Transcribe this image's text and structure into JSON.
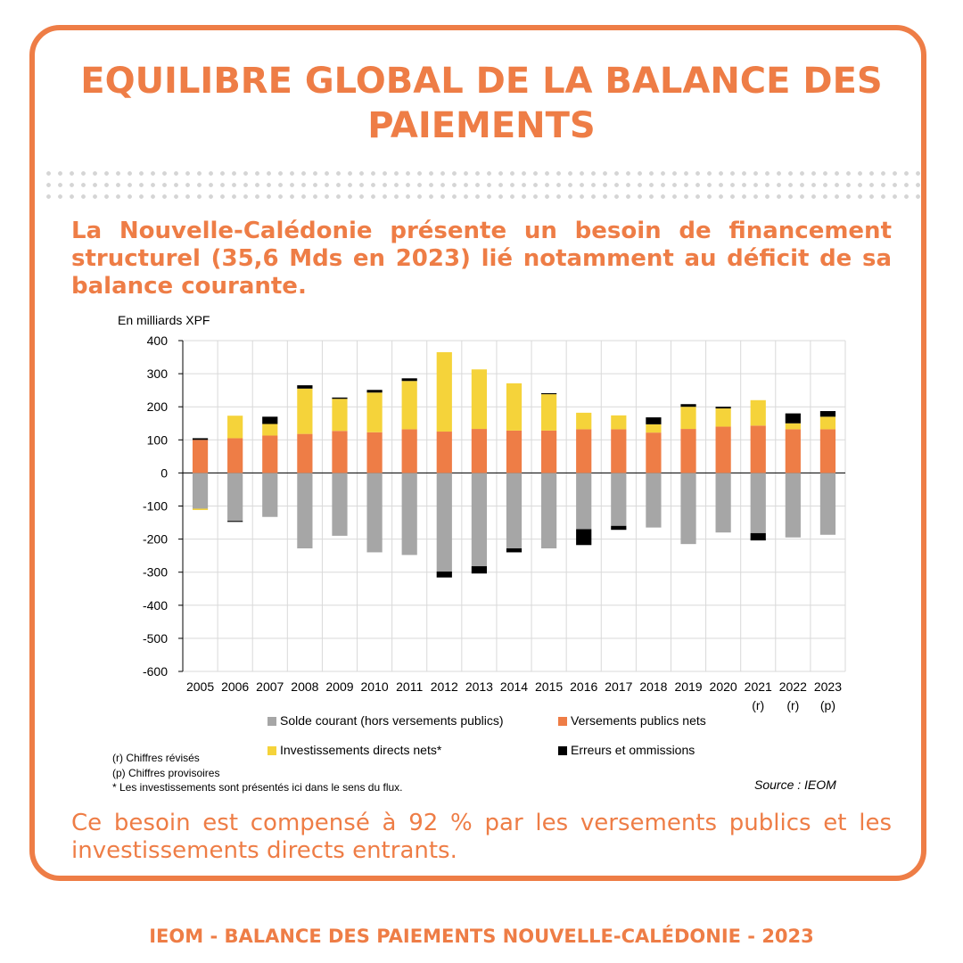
{
  "header": {
    "title": "EQUILIBRE GLOBAL DE LA BALANCE DES PAIEMENTS",
    "lead": "La Nouvelle-Calédonie présente un besoin de financement structurel (35,6 Mds en 2023) lié notamment au déficit de sa balance courante."
  },
  "chart_data": {
    "type": "bar",
    "stacked": true,
    "ylabel": "En milliards XPF",
    "ylim": [
      -600,
      400
    ],
    "yticks": [
      400,
      300,
      200,
      100,
      0,
      -100,
      -200,
      -300,
      -400,
      -500,
      -600
    ],
    "grid": true,
    "categories": [
      "2005",
      "2006",
      "2007",
      "2008",
      "2009",
      "2010",
      "2011",
      "2012",
      "2013",
      "2014",
      "2015",
      "2016",
      "2017",
      "2018",
      "2019",
      "2020",
      "2021",
      "2022",
      "2023"
    ],
    "category_notes": [
      "",
      "",
      "",
      "",
      "",
      "",
      "",
      "",
      "",
      "",
      "",
      "",
      "",
      "",
      "",
      "",
      "(r)",
      "(r)",
      "(p)"
    ],
    "series": [
      {
        "name": "Solde courant (hors versements publics)",
        "color": "#a6a6a6",
        "values": [
          -108,
          -145,
          -133,
          -228,
          -190,
          -240,
          -248,
          -298,
          -282,
          -228,
          -228,
          -170,
          -160,
          -165,
          -215,
          -180,
          -182,
          -195,
          -187
        ]
      },
      {
        "name": "Versements publics nets",
        "color": "#ee7d46",
        "values": [
          100,
          105,
          113,
          118,
          127,
          123,
          132,
          125,
          133,
          128,
          128,
          132,
          132,
          122,
          133,
          140,
          143,
          132,
          132
        ]
      },
      {
        "name": "Investissements directs nets*",
        "color": "#f5d33a",
        "values": [
          -4,
          68,
          35,
          137,
          97,
          120,
          146,
          240,
          180,
          143,
          110,
          50,
          42,
          25,
          67,
          55,
          77,
          18,
          38
        ]
      },
      {
        "name": "Erreurs et ommissions",
        "color": "#000000",
        "values": [
          5,
          -3,
          22,
          10,
          4,
          8,
          8,
          -18,
          -22,
          -12,
          3,
          -48,
          -12,
          21,
          8,
          5,
          -22,
          30,
          17
        ]
      }
    ],
    "legend_position": "bottom",
    "notes": [
      "(r) Chiffres révisés",
      "(p) Chiffres provisoires",
      "* Les investissements sont présentés ici dans le sens du flux."
    ],
    "source": "Source : IEOM"
  },
  "closing": "Ce besoin est compensé à 92 % par les versements publics et les investissements directs entrants.",
  "footer": "IEOM - BALANCE DES PAIEMENTS NOUVELLE-CALÉDONIE - 2023",
  "colors": {
    "accent": "#ee7d46"
  }
}
